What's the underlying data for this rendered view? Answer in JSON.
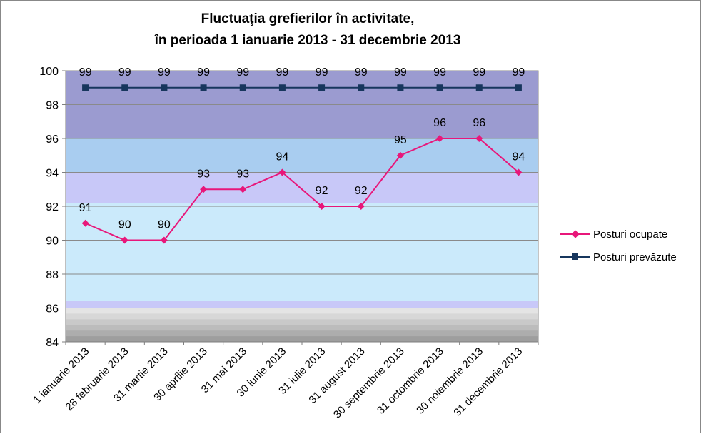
{
  "chart_data": {
    "type": "line",
    "title_lines": [
      "Fluctuaţia grefierilor în activitate,",
      "în perioada 1 ianuarie 2013 - 31 decembrie 2013"
    ],
    "categories": [
      "1 ianuarie 2013",
      "28 februarie 2013",
      "31 martie 2013",
      "30 aprilie 2013",
      "31 mai 2013",
      "30 iunie 2013",
      "31 iulie 2013",
      "31 august 2013",
      "30 septembrie 2013",
      "31 octombrie 2013",
      "30 noiembrie 2013",
      "31 decembrie 2013"
    ],
    "series": [
      {
        "name": "Posturi ocupate",
        "values": [
          91,
          90,
          90,
          93,
          93,
          94,
          92,
          92,
          95,
          96,
          96,
          94
        ],
        "color": "#e8177a",
        "marker": "diamond"
      },
      {
        "name": "Posturi prevăzute",
        "values": [
          99,
          99,
          99,
          99,
          99,
          99,
          99,
          99,
          99,
          99,
          99,
          99
        ],
        "color": "#17365d",
        "marker": "square"
      }
    ],
    "ylim": [
      84,
      100
    ],
    "yticks": [
      84,
      86,
      88,
      90,
      92,
      94,
      96,
      98,
      100
    ],
    "grid": true,
    "legend": "right",
    "data_labels": true
  },
  "colors": {
    "band_top": "#9b9bd0",
    "band_blue": "#a9cdf0",
    "band_lavender": "#c8c8f8",
    "band_light": "#cbeafb",
    "band_grays": [
      "#e4e4e4",
      "#d7d7d7",
      "#c9c9c9",
      "#bcbcbc",
      "#adadad",
      "#9e9e9e"
    ],
    "gridline": "#8a8a8a"
  }
}
